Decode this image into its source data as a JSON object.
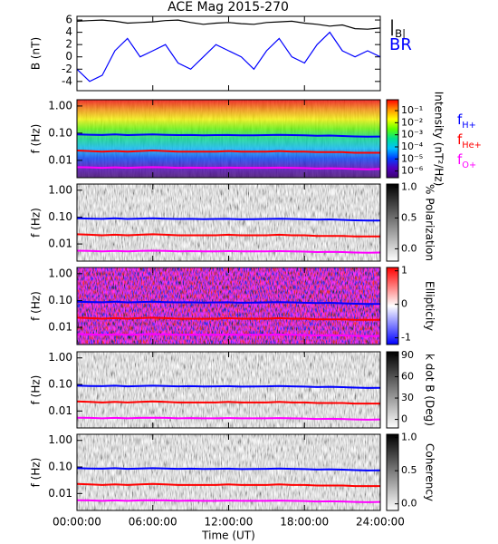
{
  "chart_data": [
    {
      "type": "line",
      "title": "ACE Mag 2015-270",
      "ylabel": "B (nT)",
      "x": [
        0,
        1,
        2,
        3,
        4,
        5,
        6,
        7,
        8,
        9,
        10,
        11,
        12,
        13,
        14,
        15,
        16,
        17,
        18,
        19,
        20,
        21,
        22,
        23,
        24
      ],
      "series": [
        {
          "name": "|B|",
          "color": "#000000",
          "values": [
            5.8,
            5.9,
            6.0,
            5.8,
            5.5,
            5.6,
            5.7,
            5.9,
            6.0,
            5.6,
            5.3,
            5.5,
            5.6,
            5.4,
            5.3,
            5.6,
            5.7,
            5.8,
            5.5,
            5.3,
            5.0,
            5.2,
            4.6,
            4.5,
            4.7
          ]
        },
        {
          "name": "BR",
          "color": "#0000ff",
          "values": [
            -2,
            -4,
            -3,
            1,
            3,
            0,
            1,
            2,
            -1,
            -2,
            0,
            2,
            1,
            0,
            -2,
            1,
            3,
            0,
            -1,
            2,
            4,
            1,
            0,
            1,
            0
          ]
        }
      ],
      "ylim": [
        -5.5,
        6.6
      ],
      "yticks": [
        6,
        4,
        2,
        0,
        -2,
        -4
      ],
      "xlim": [
        0,
        24
      ]
    },
    {
      "type": "spectrogram",
      "ylabel": "f (Hz)",
      "log": true,
      "ylim": [
        0.0023,
        1.7
      ],
      "yticks": [
        {
          "value": 1,
          "label": "1.00"
        },
        {
          "value": 0.1,
          "label": "0.10"
        },
        {
          "value": 0.01,
          "label": "0.01"
        }
      ],
      "xlim": [
        0,
        24
      ],
      "x": [
        0,
        1,
        2,
        3,
        4,
        5,
        6,
        7,
        8,
        9,
        10,
        11,
        12,
        13,
        14,
        15,
        16,
        17,
        18,
        19,
        20,
        21,
        22,
        23,
        24
      ],
      "series": [
        {
          "name": "fH+",
          "color": "#0000ff",
          "values": [
            0.09,
            0.088,
            0.086,
            0.09,
            0.085,
            0.088,
            0.09,
            0.087,
            0.085,
            0.086,
            0.084,
            0.085,
            0.086,
            0.083,
            0.084,
            0.085,
            0.087,
            0.085,
            0.083,
            0.08,
            0.082,
            0.079,
            0.076,
            0.074,
            0.075
          ]
        },
        {
          "name": "fHe+",
          "color": "#ff0000",
          "values": [
            0.023,
            0.022,
            0.021,
            0.022,
            0.021,
            0.022,
            0.023,
            0.022,
            0.021,
            0.021,
            0.021,
            0.021,
            0.022,
            0.021,
            0.021,
            0.021,
            0.022,
            0.021,
            0.021,
            0.02,
            0.02,
            0.02,
            0.019,
            0.019,
            0.019
          ]
        },
        {
          "name": "fO+",
          "color": "#ff00ff",
          "values": [
            0.0056,
            0.0055,
            0.0053,
            0.0055,
            0.0053,
            0.0055,
            0.0056,
            0.0055,
            0.0053,
            0.0054,
            0.0053,
            0.0053,
            0.0054,
            0.0053,
            0.0053,
            0.0053,
            0.0054,
            0.0053,
            0.0052,
            0.005,
            0.0051,
            0.005,
            0.0048,
            0.0047,
            0.0048
          ]
        }
      ],
      "colorbar": {
        "label": "Intensity (nT²/Hz)",
        "log": true,
        "lim": [
          2.8e-07,
          0.8
        ],
        "colors": [
          "#3b0070",
          "#5000c0",
          "#0040ff",
          "#00c0ff",
          "#00e090",
          "#60ff00",
          "#ffff00",
          "#ff9000",
          "#ff0000"
        ],
        "ticks": [
          {
            "value": 0.1,
            "label": "10⁻¹"
          },
          {
            "value": 0.01,
            "label": "10⁻²"
          },
          {
            "value": 0.001,
            "label": "10⁻³"
          },
          {
            "value": 0.0001,
            "label": "10⁻⁴"
          },
          {
            "value": 1e-05,
            "label": "10⁻⁵"
          },
          {
            "value": 1e-06,
            "label": "10⁻⁶"
          }
        ]
      }
    },
    {
      "type": "spectrogram",
      "ylabel": "f (Hz)",
      "log": true,
      "ylim": [
        0.0023,
        1.7
      ],
      "yticks": [
        {
          "value": 1,
          "label": "1.00"
        },
        {
          "value": 0.1,
          "label": "0.10"
        },
        {
          "value": 0.01,
          "label": "0.01"
        }
      ],
      "xlim": [
        0,
        24
      ],
      "colorbar": {
        "label": "% Polarization",
        "lim": [
          -0.2,
          1.05
        ],
        "colors": [
          "#ffffff",
          "#000000"
        ],
        "ticks": [
          {
            "value": 1,
            "label": "1.0"
          },
          0.5,
          {
            "value": 0,
            "label": "0.0"
          }
        ]
      }
    },
    {
      "type": "spectrogram",
      "ylabel": "f (Hz)",
      "log": true,
      "ylim": [
        0.0023,
        1.7
      ],
      "yticks": [
        {
          "value": 1,
          "label": "1.00"
        },
        {
          "value": 0.1,
          "label": "0.10"
        },
        {
          "value": 0.01,
          "label": "0.01"
        }
      ],
      "xlim": [
        0,
        24
      ],
      "colorbar": {
        "label": "Ellipticity",
        "lim": [
          -1.2,
          1.1
        ],
        "colors": [
          "#0000ff",
          "#ffffff",
          "#ff0000"
        ],
        "ticks": [
          1,
          0,
          -1
        ]
      }
    },
    {
      "type": "spectrogram",
      "ylabel": "f (Hz)",
      "log": true,
      "ylim": [
        0.0023,
        1.7
      ],
      "yticks": [
        {
          "value": 1,
          "label": "1.00"
        },
        {
          "value": 0.1,
          "label": "0.10"
        },
        {
          "value": 0.01,
          "label": "0.01"
        }
      ],
      "xlim": [
        0,
        24
      ],
      "colorbar": {
        "label": "k dot B (Deg)",
        "lim": [
          -12,
          95
        ],
        "colors": [
          "#ffffff",
          "#000000"
        ],
        "ticks": [
          90,
          60,
          30,
          0
        ]
      }
    },
    {
      "type": "spectrogram",
      "ylabel": "f (Hz)",
      "log": true,
      "ylim": [
        0.0023,
        1.7
      ],
      "yticks": [
        {
          "value": 1,
          "label": "1.00"
        },
        {
          "value": 0.1,
          "label": "0.10"
        },
        {
          "value": 0.01,
          "label": "0.01"
        }
      ],
      "xlim": [
        0,
        24
      ],
      "colorbar": {
        "label": "Coherency",
        "lim": [
          -0.1,
          1.05
        ],
        "colors": [
          "#ffffff",
          "#000000"
        ],
        "ticks": [
          {
            "value": 1,
            "label": "1.0"
          },
          0.5,
          {
            "value": 0,
            "label": "0.0"
          }
        ]
      },
      "xlabel": "Time (UT)",
      "xticks": [
        {
          "value": 0,
          "label": "00:00:00"
        },
        {
          "value": 6,
          "label": "06:00:00"
        },
        {
          "value": 12,
          "label": "12:00:00"
        },
        {
          "value": 18,
          "label": "18:00:00"
        },
        {
          "value": 24,
          "label": "24:00:00"
        }
      ]
    }
  ]
}
